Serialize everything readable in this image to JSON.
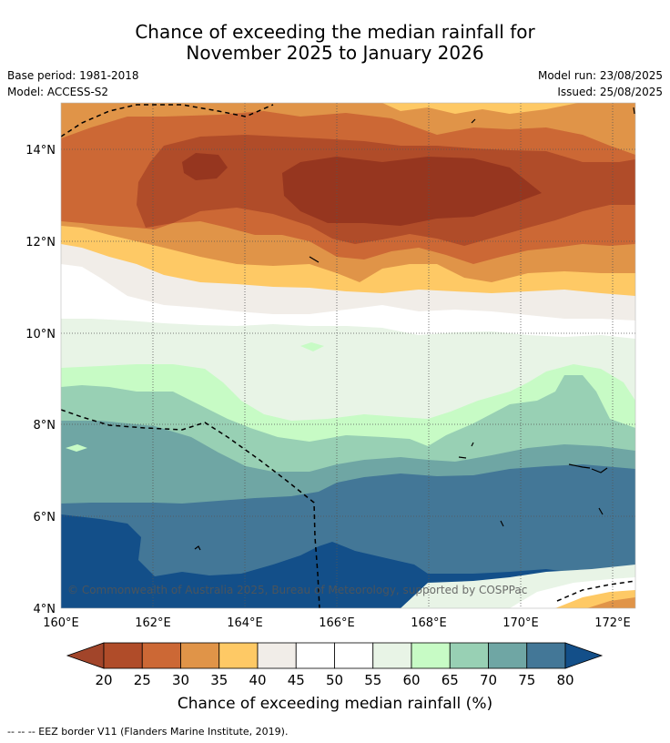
{
  "title": {
    "line1": "Chance of exceeding the median rainfall for",
    "line2": "November 2025 to January 2026"
  },
  "meta": {
    "base_period": "Base period: 1981-2018",
    "model": "Model: ACCESS-S2",
    "model_run": "Model run: 23/08/2025",
    "issued": "Issued: 25/08/2025"
  },
  "map": {
    "lat_labels": [
      "14°N",
      "12°N",
      "10°N",
      "8°N",
      "6°N",
      "4°N"
    ],
    "lon_labels": [
      "160°E",
      "162°E",
      "164°E",
      "166°E",
      "168°E",
      "170°E",
      "172°E"
    ],
    "copyright": "© Commonwealth of Australia 2025, Bureau of Meteorology, supported by COSPPac"
  },
  "colorbar": {
    "ticks": [
      "20",
      "25",
      "30",
      "35",
      "40",
      "45",
      "50",
      "55",
      "60",
      "65",
      "70",
      "75",
      "80"
    ],
    "colors": {
      "lt20": "#a2452a",
      "b20_25": "#b04c29",
      "b25_30": "#cc6835",
      "b30_35": "#e09448",
      "b35_40": "#fec965",
      "b40_45": "#f1ede8",
      "b45_50": "#ffffff",
      "b50_55": "#ffffff",
      "b55_60": "#e8f4e6",
      "b60_65": "#c7fbc5",
      "b65_70": "#98d0b4",
      "b70_75": "#6fa6a4",
      "b75_80": "#437797",
      "gt80": "#134f89"
    },
    "label": "Chance of exceeding median rainfall (%)"
  },
  "footer": "-- -- -- EEZ border V11 (Flanders Marine Institute, 2019)."
}
